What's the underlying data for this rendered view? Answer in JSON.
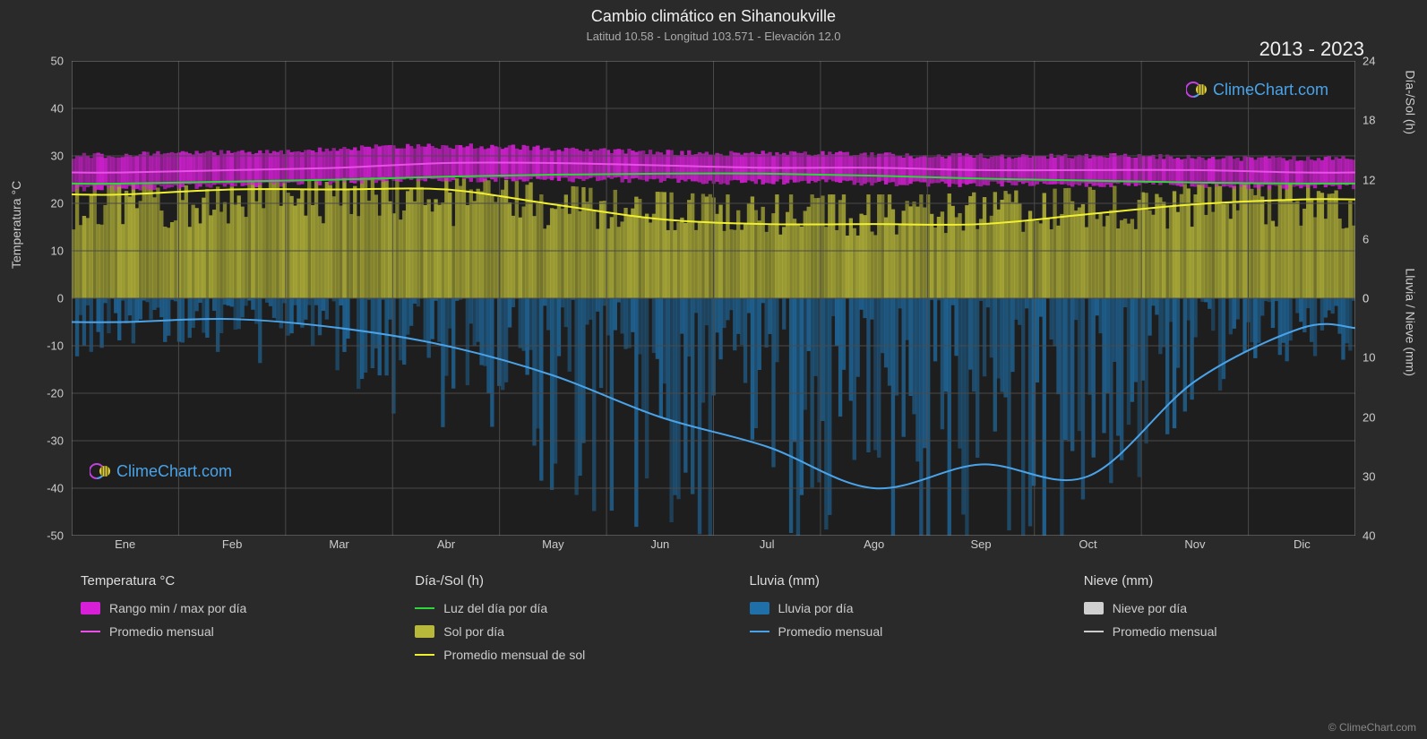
{
  "title": "Cambio climático en Sihanoukville",
  "subtitle": "Latitud 10.58 - Longitud 103.571 - Elevación 12.0",
  "year_range": "2013 - 2023",
  "watermark": "ClimeChart.com",
  "copyright": "© ClimeChart.com",
  "axes": {
    "left_label": "Temperatura °C",
    "right_top_label": "Día-/Sol (h)",
    "right_bottom_label": "Lluvia / Nieve (mm)",
    "left_ticks": [
      50,
      40,
      30,
      20,
      10,
      0,
      -10,
      -20,
      -30,
      -40,
      -50
    ],
    "right_top_ticks": [
      24,
      18,
      12,
      6,
      0
    ],
    "right_bottom_ticks": [
      0,
      10,
      20,
      30,
      40
    ],
    "x_ticks": [
      "Ene",
      "Feb",
      "Mar",
      "Abr",
      "May",
      "Jun",
      "Jul",
      "Ago",
      "Sep",
      "Oct",
      "Nov",
      "Dic"
    ]
  },
  "left_scale": {
    "min": -50,
    "max": 50
  },
  "right_top_scale": {
    "min": 0,
    "max": 24
  },
  "right_bottom_scale": {
    "min": 0,
    "max": 40
  },
  "colors": {
    "background": "#2a2a2a",
    "plot_bg": "#1e1e1e",
    "grid": "#4a4a4a",
    "temp_band": "#d81fd8",
    "temp_band_glow": "#e850e8",
    "temp_avg_line": "#e850e8",
    "daylight_line": "#2ed63c",
    "sun_band": "#b8b83a",
    "sun_avg_line": "#f0f030",
    "rain_band": "#1f6fa8",
    "rain_avg_line": "#4aa3e8",
    "snow_band": "#d0d0d0",
    "snow_avg_line": "#cccccc",
    "text": "#e0e0e0",
    "watermark": "#4aa3e8"
  },
  "series": {
    "temp_avg": [
      26.5,
      27,
      27.5,
      28.5,
      28.5,
      28,
      27.5,
      27.5,
      27,
      27,
      27,
      26.5
    ],
    "temp_band_low": [
      23,
      23.5,
      24,
      25,
      25,
      25,
      24.5,
      24.5,
      24,
      24,
      24,
      23.5
    ],
    "temp_band_high": [
      30,
      30.5,
      31,
      32,
      32,
      31,
      30.5,
      30.5,
      30,
      30,
      30,
      29.5
    ],
    "daylight_h": [
      11.6,
      11.8,
      12.0,
      12.3,
      12.5,
      12.6,
      12.6,
      12.4,
      12.1,
      11.9,
      11.7,
      11.6
    ],
    "sun_avg_h": [
      10.5,
      11,
      11,
      11,
      9.5,
      8,
      7.5,
      7.5,
      7.5,
      8.5,
      9.5,
      10
    ],
    "sun_band_max_h": [
      11.6,
      11.8,
      12.0,
      12.3,
      12.0,
      11.0,
      10.5,
      10.5,
      10.5,
      11.0,
      11.5,
      11.6
    ],
    "rain_avg_mm": [
      4,
      3.5,
      5,
      8,
      13,
      20,
      25,
      32,
      28,
      30,
      14,
      5
    ],
    "rain_band_max_mm": [
      10,
      8,
      12,
      20,
      28,
      38,
      45,
      50,
      45,
      48,
      30,
      12
    ]
  },
  "legend": {
    "cols": [
      {
        "header": "Temperatura °C",
        "items": [
          {
            "type": "box",
            "color": "#d81fd8",
            "label": "Rango min / max por día"
          },
          {
            "type": "line",
            "color": "#e850e8",
            "label": "Promedio mensual"
          }
        ]
      },
      {
        "header": "Día-/Sol (h)",
        "items": [
          {
            "type": "line",
            "color": "#2ed63c",
            "label": "Luz del día por día"
          },
          {
            "type": "box",
            "color": "#b8b83a",
            "label": "Sol por día"
          },
          {
            "type": "line",
            "color": "#f0f030",
            "label": "Promedio mensual de sol"
          }
        ]
      },
      {
        "header": "Lluvia (mm)",
        "items": [
          {
            "type": "box",
            "color": "#1f6fa8",
            "label": "Lluvia por día"
          },
          {
            "type": "line",
            "color": "#4aa3e8",
            "label": "Promedio mensual"
          }
        ]
      },
      {
        "header": "Nieve (mm)",
        "items": [
          {
            "type": "box",
            "color": "#d0d0d0",
            "label": "Nieve por día"
          },
          {
            "type": "line",
            "color": "#cccccc",
            "label": "Promedio mensual"
          }
        ]
      }
    ]
  }
}
